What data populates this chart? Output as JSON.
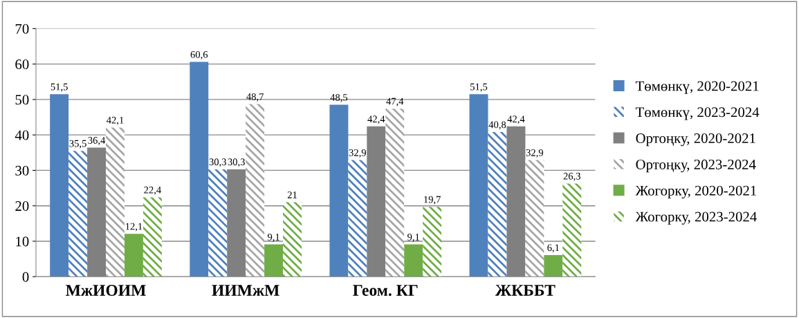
{
  "chart_data": {
    "type": "bar",
    "categories": [
      "МжИОИМ",
      "ИИМжМ",
      "Геом. КГ",
      "ЖКББТ"
    ],
    "series": [
      {
        "name": "Төмөнкү, 2020-2021",
        "color": "#4f81bd",
        "values": [
          51.5,
          60.6,
          48.5,
          51.5
        ],
        "value_labels": [
          "51,5",
          "60,6",
          "48,5",
          "51,5"
        ]
      },
      {
        "name": "Төмөнкү, 2023-2024",
        "color": "#4f81bd",
        "values": [
          35.5,
          30.3,
          32.9,
          40.8
        ],
        "value_labels": [
          "35,5",
          "30,3",
          "32,9",
          "40,8"
        ]
      },
      {
        "name": "Ортоңку, 2020-2021",
        "color": "#808080",
        "values": [
          36.4,
          30.3,
          42.4,
          42.4
        ],
        "value_labels": [
          "36,4",
          "30,3",
          "42,4",
          "42,4"
        ]
      },
      {
        "name": "Ортоңку, 2023-2024",
        "color": "#a6a6a6",
        "values": [
          42.1,
          48.7,
          47.4,
          32.9
        ],
        "value_labels": [
          "42,1",
          "48,7",
          "47,4",
          "32,9"
        ]
      },
      {
        "name": "Жогорку, 2020-2021",
        "color": "#70ad47",
        "values": [
          12.1,
          9.1,
          9.1,
          6.1
        ],
        "value_labels": [
          "12,1",
          "9,1",
          "9,1",
          "6,1"
        ]
      },
      {
        "name": "Жогорку, 2023-2024",
        "color": "#70ad47",
        "values": [
          22.4,
          21,
          19.7,
          26.3
        ],
        "value_labels": [
          "22,4",
          "21",
          "19,7",
          "26,3"
        ]
      }
    ],
    "ylim": [
      0,
      70
    ],
    "yticks": [
      0,
      10,
      20,
      30,
      40,
      50,
      60,
      70
    ],
    "grid": "y",
    "legend": "right"
  }
}
